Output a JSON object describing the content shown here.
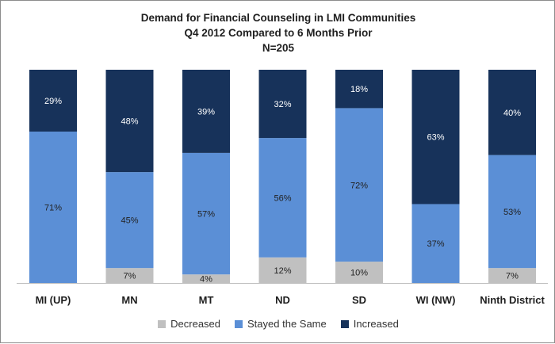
{
  "chart_data": {
    "type": "bar",
    "stacked": true,
    "title": "Demand for Financial  Counseling in LMI Communities",
    "subtitle": "Q4 2012 Compared to 6 Months Prior",
    "note": "N=205",
    "categories": [
      "MI (UP)",
      "MN",
      "MT",
      "ND",
      "SD",
      "WI (NW)",
      "Ninth District"
    ],
    "series": [
      {
        "name": "Decreased",
        "color": "#c0c0c0",
        "values": [
          0,
          7,
          4,
          12,
          10,
          0,
          7
        ],
        "labels": [
          "",
          "7%",
          "4%",
          "12%",
          "10%",
          "",
          "7%"
        ]
      },
      {
        "name": "Stayed the Same",
        "color": "#5b8fd6",
        "values": [
          71,
          45,
          57,
          56,
          72,
          37,
          53
        ],
        "labels": [
          "71%",
          "45%",
          "57%",
          "56%",
          "72%",
          "37%",
          "53%"
        ]
      },
      {
        "name": "Increased",
        "color": "#17325a",
        "values": [
          29,
          48,
          39,
          32,
          18,
          63,
          40
        ],
        "labels": [
          "29%",
          "48%",
          "39%",
          "32%",
          "18%",
          "63%",
          "40%"
        ]
      }
    ],
    "ylim": [
      0,
      100
    ],
    "legend_position": "bottom"
  }
}
